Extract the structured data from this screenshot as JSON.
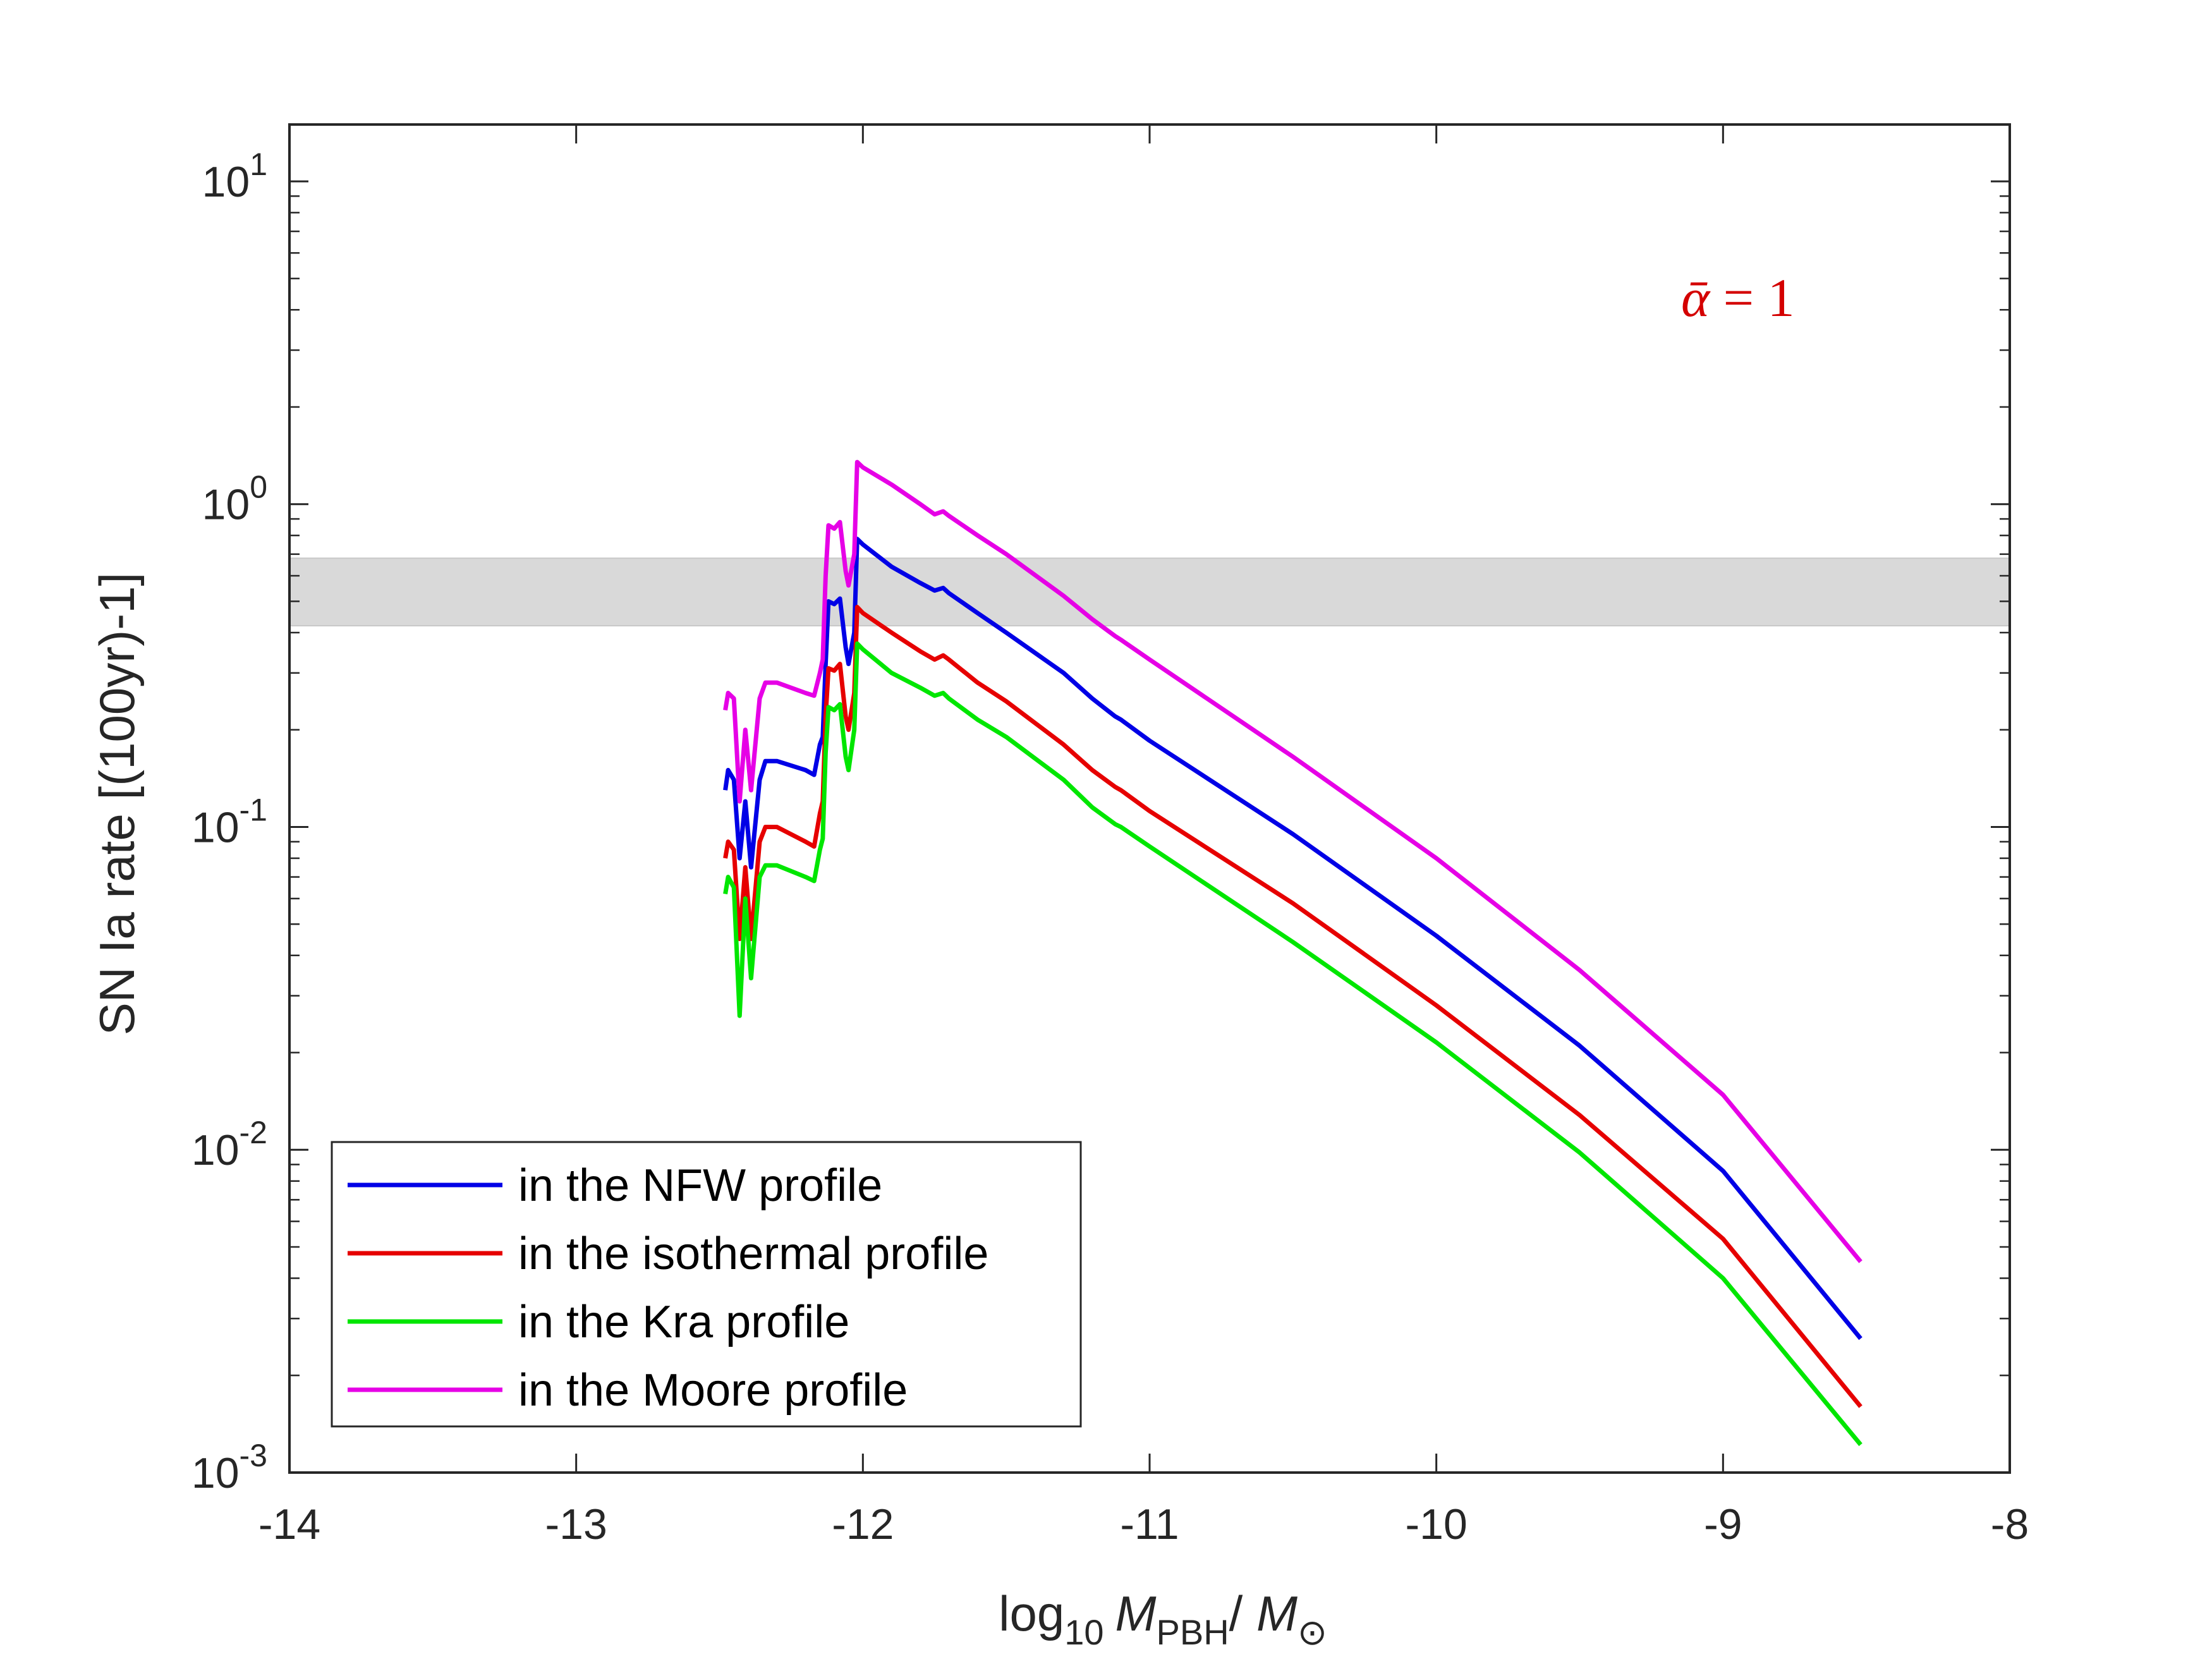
{
  "chart_data": {
    "type": "line",
    "x_scale": "linear",
    "y_scale": "log",
    "xlim": [
      -14,
      -8
    ],
    "ylim": [
      0.001,
      15
    ],
    "xticks": [
      -14,
      -13,
      -12,
      -11,
      -10,
      -9,
      -8
    ],
    "xtick_labels": [
      "-14",
      "-13",
      "-12",
      "-11",
      "-10",
      "-9",
      "-8"
    ],
    "yticks": [
      {
        "value": 10,
        "base": "10",
        "exp": "1"
      },
      {
        "value": 1,
        "base": "10",
        "exp": "0"
      },
      {
        "value": 0.1,
        "base": "10",
        "exp": "-1"
      },
      {
        "value": 0.01,
        "base": "10",
        "exp": "-2"
      },
      {
        "value": 0.001,
        "base": "10",
        "exp": "-3"
      }
    ],
    "xlabel": {
      "prefix": "log",
      "sub1": "10",
      "m1": "M",
      "sub2": "PBH",
      "sep": "/ ",
      "m2": "M",
      "sub3": "⊙"
    },
    "ylabel": "SN Ia rate [(100yr)-1]",
    "annotation": {
      "text_alpha": "ᾱ",
      "text_rest": " = 1",
      "color": "#d40000"
    },
    "band": {
      "y_low": 0.42,
      "y_high": 0.68,
      "color": "#d9d9d9"
    },
    "legend_position": "bottom-left",
    "series": [
      {
        "name": "in the NFW profile",
        "color": "#0000e6",
        "points": [
          [
            -12.48,
            0.13
          ],
          [
            -12.47,
            0.15
          ],
          [
            -12.45,
            0.14
          ],
          [
            -12.43,
            0.08
          ],
          [
            -12.41,
            0.12
          ],
          [
            -12.39,
            0.075
          ],
          [
            -12.36,
            0.14
          ],
          [
            -12.34,
            0.16
          ],
          [
            -12.3,
            0.16
          ],
          [
            -12.2,
            0.15
          ],
          [
            -12.17,
            0.145
          ],
          [
            -12.15,
            0.18
          ],
          [
            -12.14,
            0.19
          ],
          [
            -12.13,
            0.32
          ],
          [
            -12.12,
            0.5
          ],
          [
            -12.1,
            0.49
          ],
          [
            -12.08,
            0.51
          ],
          [
            -12.06,
            0.36
          ],
          [
            -12.05,
            0.32
          ],
          [
            -12.03,
            0.4
          ],
          [
            -12.02,
            0.78
          ],
          [
            -12.0,
            0.75
          ],
          [
            -11.9,
            0.64
          ],
          [
            -11.8,
            0.57
          ],
          [
            -11.75,
            0.54
          ],
          [
            -11.72,
            0.55
          ],
          [
            -11.7,
            0.53
          ],
          [
            -11.6,
            0.46
          ],
          [
            -11.5,
            0.4
          ],
          [
            -11.3,
            0.3
          ],
          [
            -11.2,
            0.25
          ],
          [
            -11.12,
            0.22
          ],
          [
            -11.1,
            0.215
          ],
          [
            -11.0,
            0.185
          ],
          [
            -10.5,
            0.095
          ],
          [
            -10.0,
            0.046
          ],
          [
            -9.5,
            0.021
          ],
          [
            -9.0,
            0.0086
          ],
          [
            -8.52,
            0.0026
          ]
        ]
      },
      {
        "name": "in the isothermal profile",
        "color": "#e60000",
        "points": [
          [
            -12.48,
            0.08
          ],
          [
            -12.47,
            0.09
          ],
          [
            -12.45,
            0.085
          ],
          [
            -12.43,
            0.045
          ],
          [
            -12.41,
            0.075
          ],
          [
            -12.39,
            0.045
          ],
          [
            -12.36,
            0.09
          ],
          [
            -12.34,
            0.1
          ],
          [
            -12.3,
            0.1
          ],
          [
            -12.2,
            0.09
          ],
          [
            -12.17,
            0.087
          ],
          [
            -12.15,
            0.11
          ],
          [
            -12.14,
            0.12
          ],
          [
            -12.13,
            0.22
          ],
          [
            -12.12,
            0.31
          ],
          [
            -12.1,
            0.305
          ],
          [
            -12.08,
            0.32
          ],
          [
            -12.06,
            0.22
          ],
          [
            -12.05,
            0.2
          ],
          [
            -12.03,
            0.26
          ],
          [
            -12.02,
            0.48
          ],
          [
            -12.0,
            0.46
          ],
          [
            -11.9,
            0.4
          ],
          [
            -11.8,
            0.35
          ],
          [
            -11.75,
            0.33
          ],
          [
            -11.72,
            0.34
          ],
          [
            -11.7,
            0.33
          ],
          [
            -11.6,
            0.28
          ],
          [
            -11.5,
            0.245
          ],
          [
            -11.3,
            0.18
          ],
          [
            -11.2,
            0.15
          ],
          [
            -11.12,
            0.133
          ],
          [
            -11.1,
            0.13
          ],
          [
            -11.0,
            0.112
          ],
          [
            -10.5,
            0.058
          ],
          [
            -10.0,
            0.028
          ],
          [
            -9.5,
            0.0128
          ],
          [
            -9.0,
            0.0053
          ],
          [
            -8.52,
            0.0016
          ]
        ]
      },
      {
        "name": "in the Kra profile",
        "color": "#00e600",
        "points": [
          [
            -12.48,
            0.062
          ],
          [
            -12.47,
            0.07
          ],
          [
            -12.45,
            0.065
          ],
          [
            -12.43,
            0.026
          ],
          [
            -12.41,
            0.06
          ],
          [
            -12.39,
            0.034
          ],
          [
            -12.36,
            0.07
          ],
          [
            -12.34,
            0.076
          ],
          [
            -12.3,
            0.076
          ],
          [
            -12.2,
            0.07
          ],
          [
            -12.17,
            0.068
          ],
          [
            -12.15,
            0.085
          ],
          [
            -12.14,
            0.092
          ],
          [
            -12.13,
            0.17
          ],
          [
            -12.12,
            0.235
          ],
          [
            -12.1,
            0.23
          ],
          [
            -12.08,
            0.24
          ],
          [
            -12.06,
            0.165
          ],
          [
            -12.05,
            0.15
          ],
          [
            -12.03,
            0.2
          ],
          [
            -12.02,
            0.37
          ],
          [
            -12.0,
            0.355
          ],
          [
            -11.9,
            0.3
          ],
          [
            -11.8,
            0.27
          ],
          [
            -11.75,
            0.255
          ],
          [
            -11.72,
            0.26
          ],
          [
            -11.7,
            0.25
          ],
          [
            -11.6,
            0.215
          ],
          [
            -11.5,
            0.19
          ],
          [
            -11.3,
            0.14
          ],
          [
            -11.2,
            0.115
          ],
          [
            -11.12,
            0.102
          ],
          [
            -11.1,
            0.1
          ],
          [
            -11.0,
            0.087
          ],
          [
            -10.5,
            0.044
          ],
          [
            -10.0,
            0.0215
          ],
          [
            -9.5,
            0.0098
          ],
          [
            -9.0,
            0.004
          ],
          [
            -8.52,
            0.00122
          ]
        ]
      },
      {
        "name": "in the Moore profile",
        "color": "#e600e6",
        "points": [
          [
            -12.48,
            0.23
          ],
          [
            -12.47,
            0.26
          ],
          [
            -12.45,
            0.25
          ],
          [
            -12.43,
            0.12
          ],
          [
            -12.41,
            0.2
          ],
          [
            -12.39,
            0.13
          ],
          [
            -12.36,
            0.25
          ],
          [
            -12.34,
            0.28
          ],
          [
            -12.3,
            0.28
          ],
          [
            -12.2,
            0.26
          ],
          [
            -12.17,
            0.255
          ],
          [
            -12.15,
            0.3
          ],
          [
            -12.14,
            0.33
          ],
          [
            -12.13,
            0.6
          ],
          [
            -12.12,
            0.86
          ],
          [
            -12.1,
            0.84
          ],
          [
            -12.08,
            0.88
          ],
          [
            -12.06,
            0.62
          ],
          [
            -12.05,
            0.56
          ],
          [
            -12.03,
            0.7
          ],
          [
            -12.02,
            1.35
          ],
          [
            -12.0,
            1.3
          ],
          [
            -11.9,
            1.15
          ],
          [
            -11.8,
            1.0
          ],
          [
            -11.75,
            0.93
          ],
          [
            -11.72,
            0.95
          ],
          [
            -11.7,
            0.92
          ],
          [
            -11.6,
            0.8
          ],
          [
            -11.5,
            0.7
          ],
          [
            -11.3,
            0.52
          ],
          [
            -11.2,
            0.44
          ],
          [
            -11.12,
            0.39
          ],
          [
            -11.1,
            0.38
          ],
          [
            -11.0,
            0.33
          ],
          [
            -10.5,
            0.165
          ],
          [
            -10.0,
            0.08
          ],
          [
            -9.5,
            0.036
          ],
          [
            -9.0,
            0.0148
          ],
          [
            -8.52,
            0.0045
          ]
        ]
      }
    ]
  }
}
